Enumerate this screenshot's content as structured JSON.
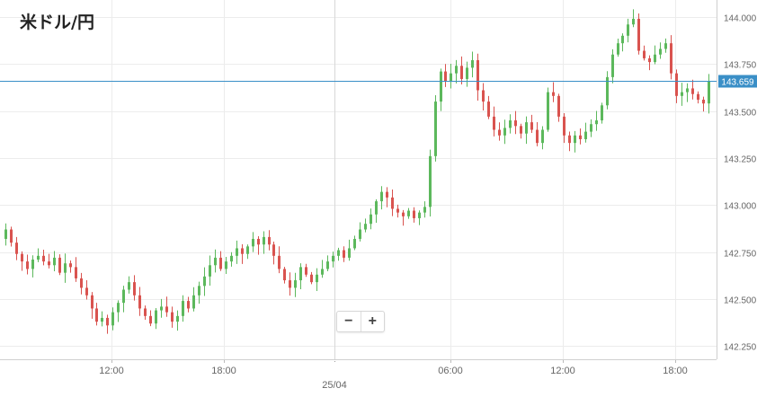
{
  "header": {
    "title": "米ドル/円"
  },
  "zoom": {
    "minus": "−",
    "plus": "+"
  },
  "colors": {
    "up": "#5cb85c",
    "down": "#d9534f",
    "grid": "#ececec",
    "price_line": "#3a8fc7",
    "axis_text": "#666666"
  },
  "chart_data": {
    "type": "candlestick",
    "title": "米ドル/円",
    "y_ticks": [
      "144.000",
      "143.750",
      "143.500",
      "143.250",
      "143.000",
      "142.750",
      "142.500",
      "142.250"
    ],
    "x_ticks": [
      "12:00",
      "18:00",
      "06:00",
      "12:00",
      "18:00"
    ],
    "date_marker": "25/04",
    "ylim": [
      142.18,
      144.09
    ],
    "current_price": "143.659",
    "grid": true,
    "closes": [
      142.87,
      142.8,
      142.74,
      142.7,
      142.66,
      142.71,
      142.73,
      142.7,
      142.68,
      142.72,
      142.64,
      142.69,
      142.67,
      142.61,
      142.56,
      142.52,
      142.45,
      142.38,
      142.4,
      142.36,
      142.43,
      142.48,
      142.55,
      142.59,
      142.52,
      142.45,
      142.41,
      142.37,
      142.44,
      142.46,
      142.43,
      142.38,
      142.41,
      142.49,
      142.45,
      142.52,
      142.57,
      142.62,
      142.68,
      142.72,
      142.66,
      142.7,
      142.73,
      142.77,
      142.74,
      142.78,
      142.82,
      142.79,
      142.83,
      142.79,
      142.73,
      142.66,
      142.6,
      142.56,
      142.6,
      142.67,
      142.63,
      142.59,
      142.63,
      142.66,
      142.7,
      142.73,
      142.76,
      142.72,
      142.77,
      142.82,
      142.87,
      142.9,
      142.95,
      143.02,
      143.07,
      143.04,
      142.98,
      142.96,
      142.94,
      142.97,
      142.93,
      142.96,
      142.99,
      143.26,
      143.55,
      143.71,
      143.66,
      143.7,
      143.74,
      143.67,
      143.73,
      143.77,
      143.61,
      143.55,
      143.47,
      143.4,
      143.37,
      143.41,
      143.45,
      143.42,
      143.38,
      143.44,
      143.4,
      143.33,
      143.4,
      143.6,
      143.58,
      143.47,
      143.37,
      143.33,
      143.37,
      143.35,
      143.39,
      143.43,
      143.45,
      143.53,
      143.68,
      143.8,
      143.86,
      143.9,
      143.96,
      143.99,
      143.82,
      143.78,
      143.76,
      143.8,
      143.83,
      143.86,
      143.7,
      143.58,
      143.6,
      143.62,
      143.59,
      143.56,
      143.54,
      143.66
    ]
  }
}
